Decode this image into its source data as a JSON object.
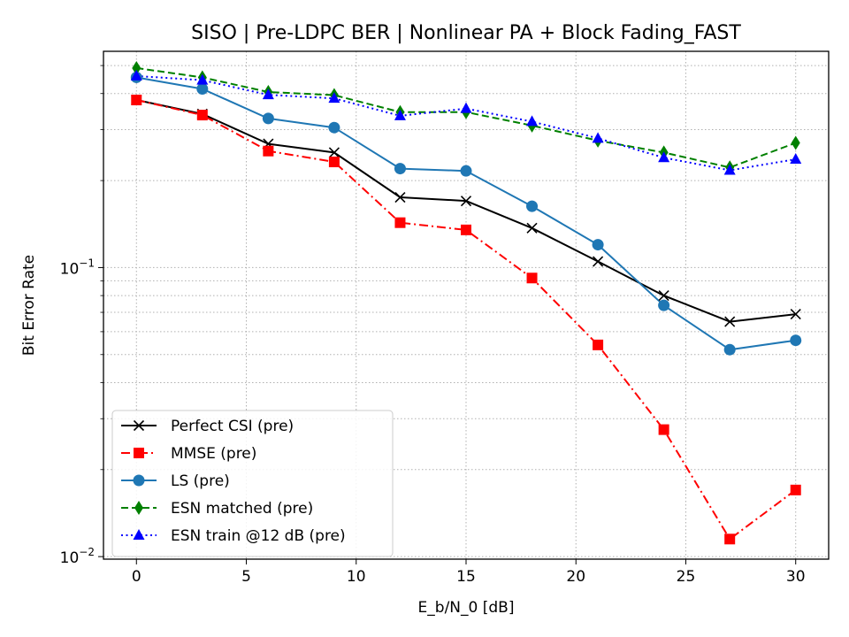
{
  "chart_data": {
    "type": "line",
    "title": "SISO | Pre-LDPC BER | Nonlinear PA + Block Fading_FAST",
    "xlabel": "E_b/N_0 [dB]",
    "ylabel": "Bit Error Rate",
    "yscale": "log",
    "xlim": [
      -1.5,
      31.5
    ],
    "ylim": [
      0.0098,
      0.56
    ],
    "x": [
      0,
      3,
      6,
      9,
      12,
      15,
      18,
      21,
      24,
      27,
      30
    ],
    "x_ticks": [
      {
        "value": 0,
        "label": "0"
      },
      {
        "value": 5,
        "label": "5"
      },
      {
        "value": 10,
        "label": "10"
      },
      {
        "value": 15,
        "label": "15"
      },
      {
        "value": 20,
        "label": "20"
      },
      {
        "value": 25,
        "label": "25"
      },
      {
        "value": 30,
        "label": "30"
      }
    ],
    "y_major_ticks": [
      {
        "value": 0.01,
        "base": "10",
        "exp": "−2"
      },
      {
        "value": 0.1,
        "base": "10",
        "exp": "−1"
      }
    ],
    "grid": true,
    "legend_position": "lower-left",
    "series": [
      {
        "name": "Perfect CSI (pre)",
        "color": "#000000",
        "dash": "solid",
        "marker": "x",
        "values": [
          0.38,
          0.34,
          0.268,
          0.25,
          0.175,
          0.17,
          0.137,
          0.105,
          0.08,
          0.065,
          0.069
        ]
      },
      {
        "name": "MMSE (pre)",
        "color": "#ff0000",
        "dash": "dashdot",
        "marker": "square",
        "values": [
          0.38,
          0.337,
          0.253,
          0.232,
          0.143,
          0.135,
          0.092,
          0.054,
          0.0275,
          0.0115,
          0.017
        ]
      },
      {
        "name": "LS (pre)",
        "color": "#1f77b4",
        "dash": "solid",
        "marker": "circle",
        "values": [
          0.455,
          0.415,
          0.328,
          0.305,
          0.22,
          0.216,
          0.163,
          0.12,
          0.074,
          0.052,
          0.056
        ]
      },
      {
        "name": "ESN matched (pre)",
        "color": "#008000",
        "dash": "dashed",
        "marker": "thin_diamond",
        "values": [
          0.49,
          0.455,
          0.405,
          0.395,
          0.345,
          0.345,
          0.31,
          0.275,
          0.25,
          0.222,
          0.27
        ]
      },
      {
        "name": "ESN train @12 dB (pre)",
        "color": "#0000ff",
        "dash": "dotted",
        "marker": "triangle",
        "values": [
          0.46,
          0.445,
          0.396,
          0.385,
          0.335,
          0.355,
          0.32,
          0.28,
          0.24,
          0.217,
          0.237
        ]
      }
    ]
  }
}
